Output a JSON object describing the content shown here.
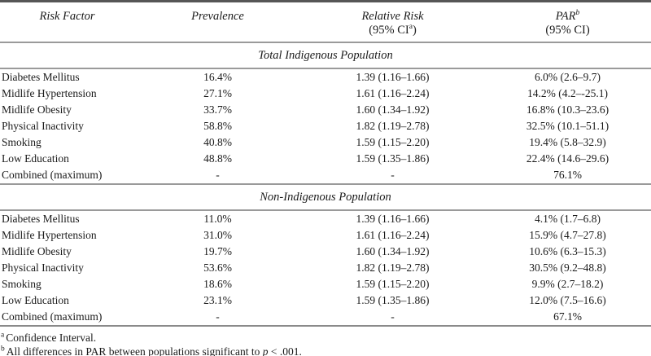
{
  "page": {
    "background": "#ffffff",
    "text_color": "#1a1a1a",
    "rule_color": "#9a9a9a",
    "top_rule_color": "#565656"
  },
  "table": {
    "header": {
      "col1": "Risk Factor",
      "col2": "Prevalence",
      "col3_line1": "Relative Risk",
      "col3_line2_pre": "(95% CI",
      "col3_line2_sup": "a",
      "col3_line2_post": ")",
      "col4_line1": "PAR",
      "col4_line1_sup": "b",
      "col4_line2": "(95% CI)"
    },
    "sections": [
      {
        "title": "Total Indigenous Population",
        "rows": [
          [
            "Diabetes Mellitus",
            "16.4%",
            "1.39 (1.16–1.66)",
            "6.0% (2.6–9.7)"
          ],
          [
            "Midlife Hypertension",
            "27.1%",
            "1.61 (1.16–2.24)",
            "14.2% (4.2–-25.1)"
          ],
          [
            "Midlife Obesity",
            "33.7%",
            "1.60 (1.34–1.92)",
            "16.8% (10.3–23.6)"
          ],
          [
            "Physical Inactivity",
            "58.8%",
            "1.82 (1.19–2.78)",
            "32.5% (10.1–51.1)"
          ],
          [
            "Smoking",
            "40.8%",
            "1.59 (1.15–2.20)",
            "19.4% (5.8–32.9)"
          ],
          [
            "Low Education",
            "48.8%",
            "1.59 (1.35–1.86)",
            "22.4% (14.6–29.6)"
          ],
          [
            "Combined (maximum)",
            "-",
            "-",
            "76.1%"
          ]
        ]
      },
      {
        "title": "Non-Indigenous Population",
        "rows": [
          [
            "Diabetes Mellitus",
            "11.0%",
            "1.39 (1.16–1.66)",
            "4.1% (1.7–6.8)"
          ],
          [
            "Midlife Hypertension",
            "31.0%",
            "1.61 (1.16–2.24)",
            "15.9% (4.7–27.8)"
          ],
          [
            "Midlife Obesity",
            "19.7%",
            "1.60 (1.34–1.92)",
            "10.6% (6.3–15.3)"
          ],
          [
            "Physical Inactivity",
            "53.6%",
            "1.82 (1.19–2.78)",
            "30.5% (9.2–48.8)"
          ],
          [
            "Smoking",
            "18.6%",
            "1.59 (1.15–2.20)",
            "9.9% (2.7–18.2)"
          ],
          [
            "Low Education",
            "23.1%",
            "1.59 (1.35–1.86)",
            "12.0% (7.5–16.6)"
          ],
          [
            "Combined (maximum)",
            "-",
            "-",
            "67.1%"
          ]
        ]
      }
    ],
    "footnotes": [
      {
        "marker": "a",
        "text": "Confidence Interval."
      },
      {
        "marker": "b",
        "text_pre": "All differences in PAR between populations significant to ",
        "italic_term": "p",
        "text_post": " < .001."
      }
    ]
  }
}
